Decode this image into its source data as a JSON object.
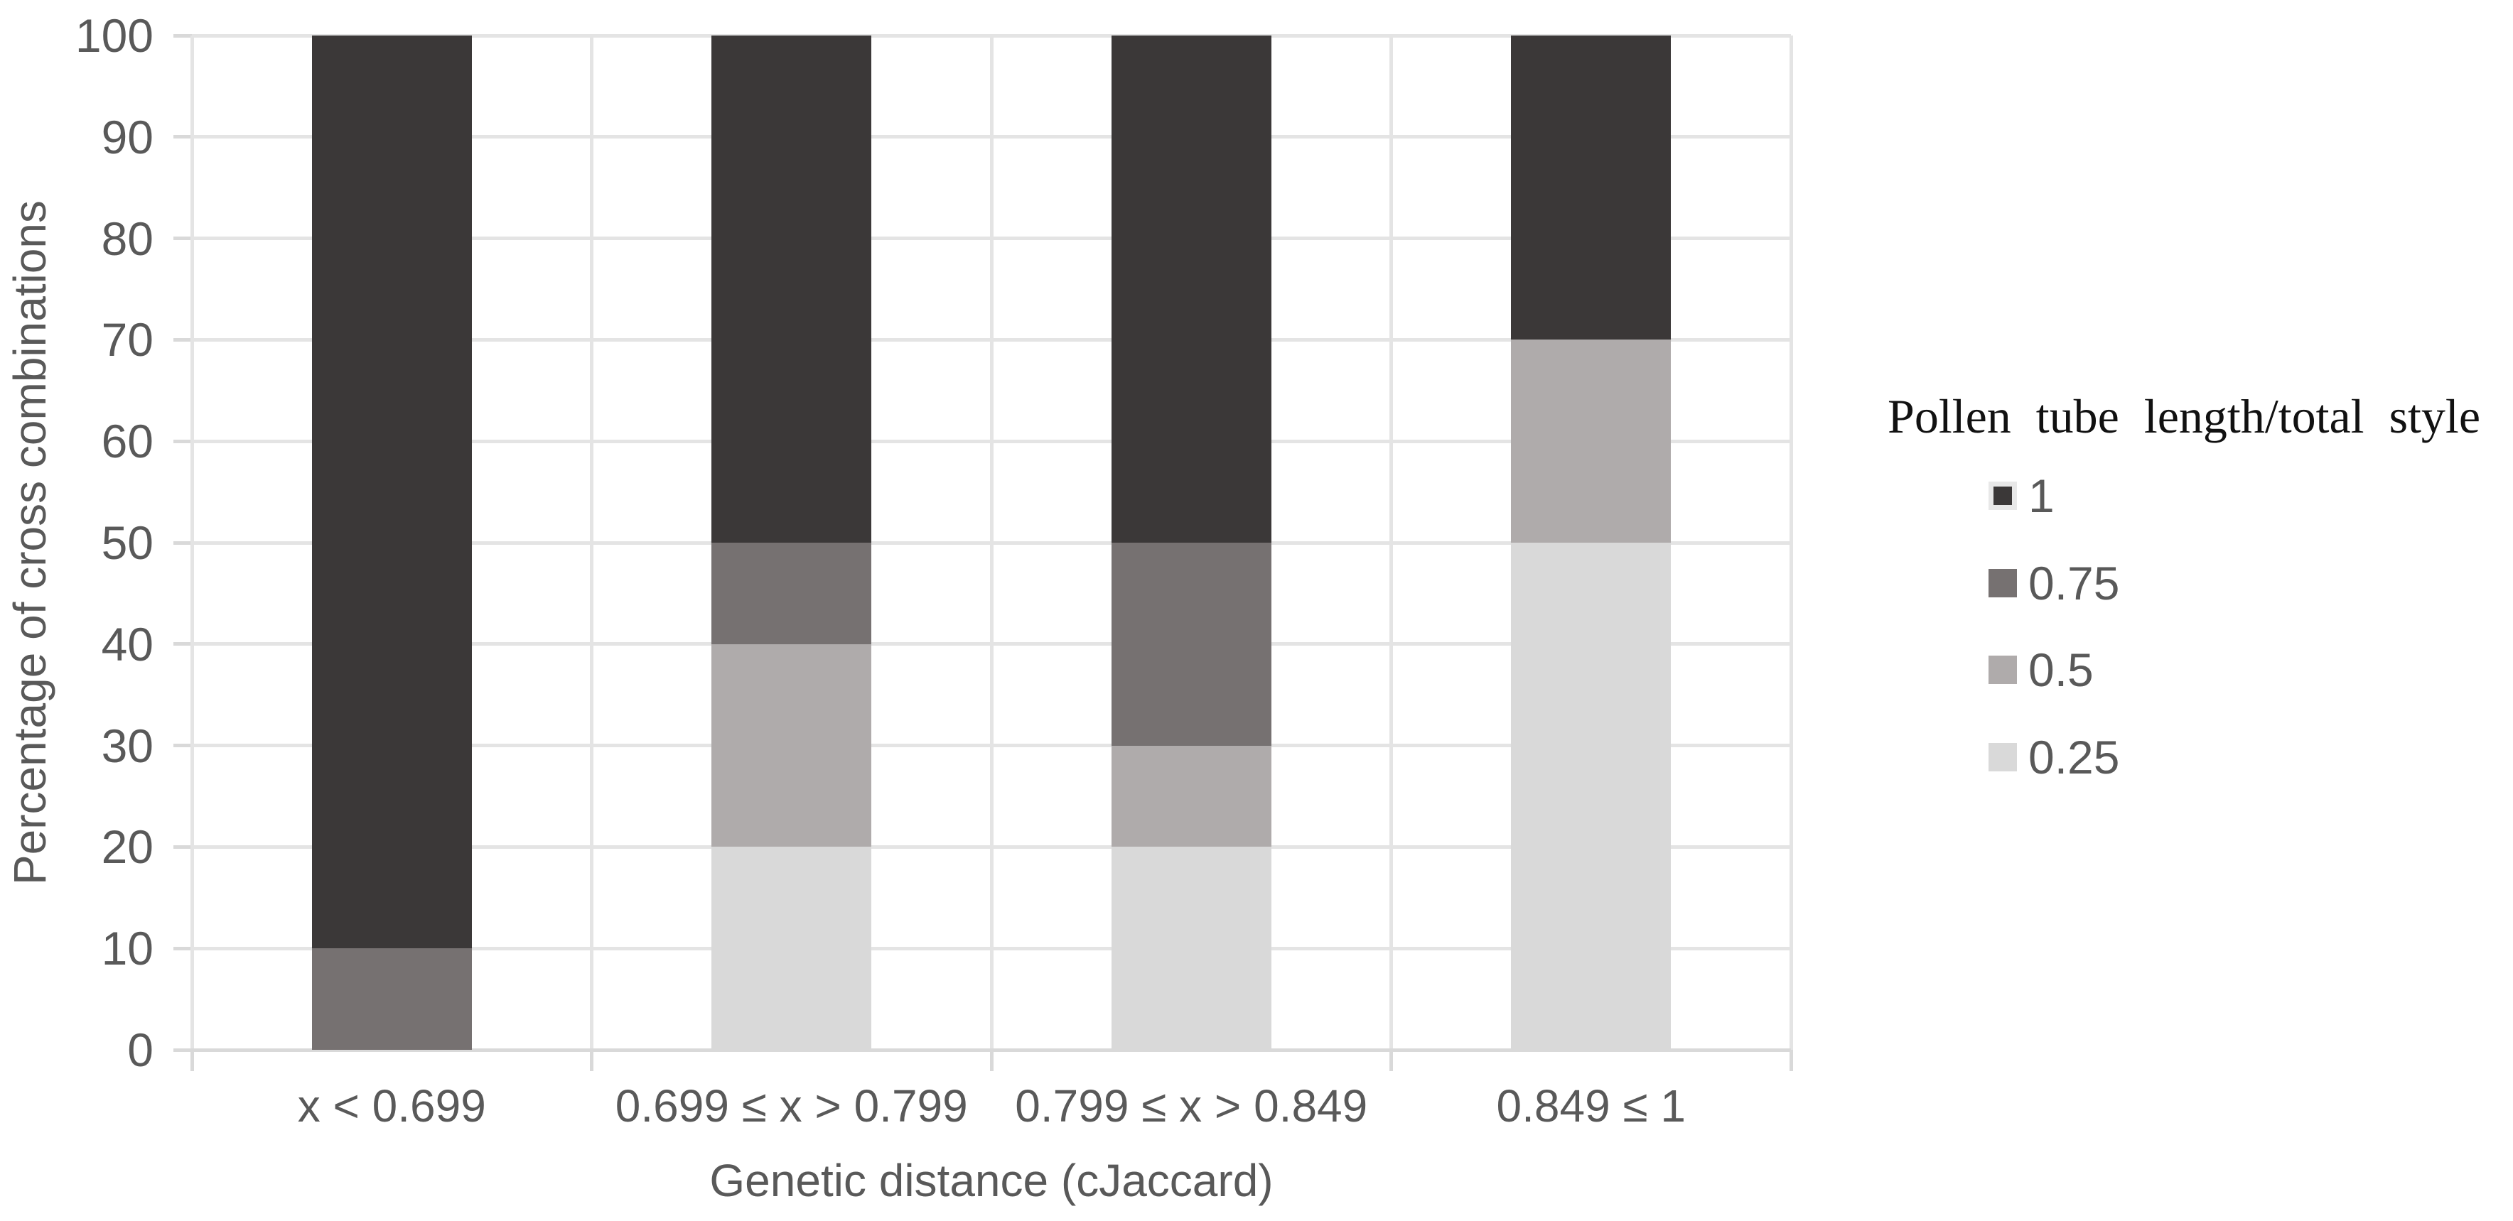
{
  "chart_data": {
    "type": "bar",
    "stacked": true,
    "categories": [
      "x < 0.699",
      "0.699 ≤ x > 0.799",
      "0.799 ≤ x > 0.849",
      "0.849 ≤ 1"
    ],
    "series": [
      {
        "name": "1",
        "color": "#3b3838",
        "values": [
          90,
          50,
          50,
          30
        ]
      },
      {
        "name": "0.75",
        "color": "#767171",
        "values": [
          10,
          10,
          20,
          0
        ]
      },
      {
        "name": "0.5",
        "color": "#afabab",
        "values": [
          0,
          20,
          10,
          20
        ]
      },
      {
        "name": "0.25",
        "color": "#d9d9d9",
        "values": [
          0,
          20,
          20,
          50
        ]
      }
    ],
    "stack_bottom_to_top": [
      "0.25",
      "0.5",
      "0.75",
      "1"
    ],
    "xlabel": "Genetic distance (cJaccard)",
    "ylabel": "Percentage of cross combinations",
    "ylim": [
      0,
      100
    ],
    "yticks": [
      0,
      10,
      20,
      30,
      40,
      50,
      60,
      70,
      80,
      90,
      100
    ],
    "grid": {
      "horizontal": true,
      "vertical_category_boundaries": true,
      "color": "#e4e4e4"
    },
    "axis_color": "#d9d9d9",
    "label_color": "#595959",
    "legend": {
      "title": "Pollen tube length/total style",
      "position": "right",
      "entries": [
        {
          "label": "1",
          "color": "#3b3838",
          "highlighted": true,
          "highlight_color": "#e8e8e8"
        },
        {
          "label": "0.75",
          "color": "#767171",
          "highlighted": false
        },
        {
          "label": "0.5",
          "color": "#afabab",
          "highlighted": false
        },
        {
          "label": "0.25",
          "color": "#d9d9d9",
          "highlighted": false
        }
      ]
    }
  }
}
